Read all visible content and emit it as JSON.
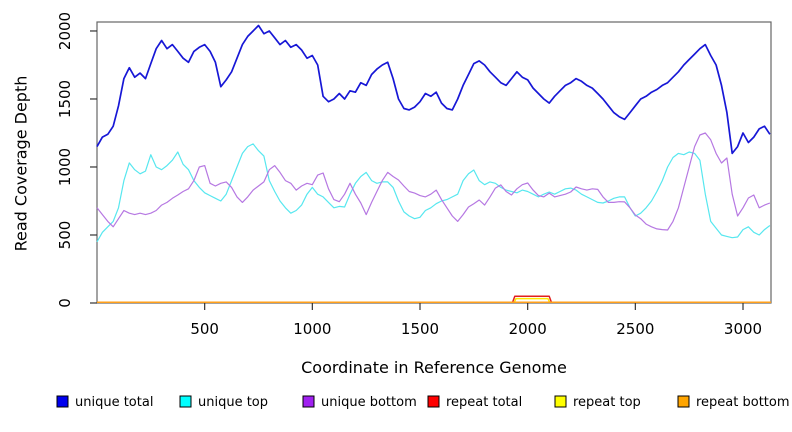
{
  "chart_data": {
    "type": "line",
    "title": "",
    "xlabel": "Coordinate in Reference Genome",
    "ylabel": "Read Coverage Depth",
    "xlim": [
      0,
      3130
    ],
    "ylim": [
      0,
      2066
    ],
    "x_ticks": [
      500,
      1000,
      1500,
      2000,
      2500,
      3000
    ],
    "y_ticks": [
      0,
      500,
      1000,
      1500,
      2000
    ],
    "grid": false,
    "legend_position": "bottom",
    "box_color": "#666666",
    "tick_color": "#333333",
    "series": [
      {
        "name": "unique total",
        "color": "#0000ee",
        "stroke": "#1717d6",
        "width": 1.7,
        "x_start": 0,
        "x_step": 25,
        "values": [
          1150,
          1220,
          1240,
          1300,
          1450,
          1650,
          1730,
          1660,
          1690,
          1650,
          1760,
          1870,
          1930,
          1870,
          1900,
          1850,
          1800,
          1770,
          1850,
          1880,
          1900,
          1850,
          1770,
          1590,
          1640,
          1700,
          1800,
          1900,
          1960,
          2000,
          2040,
          1980,
          2000,
          1950,
          1900,
          1930,
          1880,
          1900,
          1860,
          1800,
          1820,
          1750,
          1520,
          1480,
          1500,
          1540,
          1500,
          1560,
          1550,
          1620,
          1600,
          1680,
          1720,
          1750,
          1770,
          1650,
          1500,
          1430,
          1420,
          1440,
          1480,
          1540,
          1520,
          1550,
          1470,
          1430,
          1420,
          1500,
          1600,
          1680,
          1760,
          1780,
          1750,
          1700,
          1660,
          1620,
          1600,
          1650,
          1700,
          1660,
          1640,
          1580,
          1540,
          1500,
          1470,
          1520,
          1560,
          1600,
          1620,
          1650,
          1630,
          1600,
          1580,
          1540,
          1500,
          1450,
          1400,
          1370,
          1350,
          1400,
          1450,
          1500,
          1520,
          1550,
          1570,
          1600,
          1620,
          1660,
          1700,
          1750,
          1790,
          1830,
          1870,
          1900,
          1820,
          1750,
          1600,
          1400,
          1100,
          1150,
          1250,
          1180,
          1220,
          1280,
          1300,
          1240
        ]
      },
      {
        "name": "unique top",
        "color": "#00ffff",
        "stroke": "#57e7ef",
        "width": 1.2,
        "x_start": 0,
        "x_step": 25,
        "values": [
          450,
          520,
          560,
          600,
          700,
          900,
          1030,
          980,
          950,
          970,
          1090,
          1000,
          980,
          1010,
          1050,
          1110,
          1020,
          980,
          900,
          850,
          810,
          790,
          770,
          750,
          800,
          900,
          1000,
          1100,
          1150,
          1170,
          1120,
          1080,
          900,
          820,
          750,
          700,
          660,
          680,
          720,
          800,
          850,
          800,
          780,
          740,
          700,
          710,
          706,
          800,
          880,
          930,
          960,
          900,
          880,
          890,
          890,
          850,
          750,
          670,
          640,
          620,
          630,
          680,
          700,
          730,
          750,
          760,
          780,
          800,
          900,
          950,
          978,
          900,
          870,
          890,
          880,
          850,
          830,
          820,
          810,
          830,
          820,
          800,
          780,
          800,
          816,
          800,
          820,
          840,
          845,
          830,
          800,
          780,
          760,
          740,
          735,
          750,
          770,
          780,
          780,
          700,
          640,
          660,
          700,
          750,
          820,
          900,
          1000,
          1070,
          1100,
          1090,
          1110,
          1100,
          1050,
          800,
          600,
          550,
          500,
          490,
          480,
          485,
          540,
          560,
          520,
          500,
          540,
          570
        ]
      },
      {
        "name": "unique bottom",
        "color": "#a020f0",
        "stroke": "#b678e2",
        "width": 1.2,
        "x_start": 0,
        "x_step": 25,
        "values": [
          700,
          650,
          600,
          560,
          620,
          680,
          660,
          650,
          660,
          650,
          660,
          680,
          720,
          740,
          770,
          794,
          820,
          840,
          900,
          1000,
          1010,
          880,
          860,
          880,
          890,
          850,
          780,
          740,
          780,
          830,
          860,
          890,
          980,
          1010,
          960,
          900,
          880,
          830,
          860,
          880,
          870,
          940,
          956,
          840,
          760,
          745,
          800,
          880,
          800,
          735,
          650,
          740,
          820,
          900,
          960,
          930,
          904,
          860,
          820,
          808,
          790,
          780,
          800,
          830,
          760,
          700,
          640,
          600,
          650,
          706,
          730,
          757,
          720,
          780,
          845,
          868,
          820,
          794,
          840,
          870,
          882,
          830,
          790,
          780,
          808,
          780,
          790,
          800,
          816,
          853,
          840,
          830,
          840,
          835,
          780,
          740,
          740,
          745,
          743,
          700,
          647,
          620,
          580,
          560,
          545,
          540,
          537,
          600,
          700,
          850,
          1000,
          1150,
          1235,
          1250,
          1200,
          1100,
          1029,
          1066,
          800,
          640,
          700,
          772,
          794,
          700,
          720,
          735
        ]
      },
      {
        "name": "repeat total",
        "color": "#ff0000",
        "stroke": "#e01f1f",
        "width": 1.5,
        "points": [
          [
            0,
            6
          ],
          [
            1930,
            6
          ],
          [
            1940,
            50
          ],
          [
            2100,
            50
          ],
          [
            2110,
            6
          ],
          [
            3130,
            6
          ]
        ]
      },
      {
        "name": "repeat top",
        "color": "#ffff00",
        "stroke": "#ffe600",
        "width": 1.5,
        "points": [
          [
            0,
            6
          ],
          [
            1938,
            6
          ],
          [
            1946,
            32
          ],
          [
            2094,
            32
          ],
          [
            2102,
            6
          ],
          [
            3130,
            6
          ]
        ]
      },
      {
        "name": "repeat bottom",
        "color": "#ffa500",
        "stroke": "#ff9f1a",
        "width": 1.5,
        "points": [
          [
            0,
            6
          ],
          [
            3130,
            6
          ]
        ]
      }
    ],
    "legend_x": [
      57,
      180,
      303,
      428,
      555,
      678
    ]
  }
}
